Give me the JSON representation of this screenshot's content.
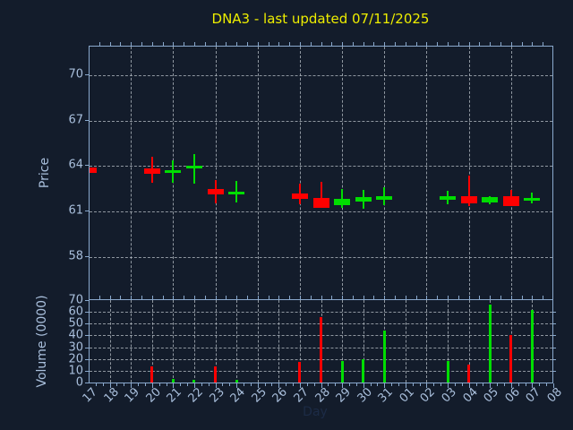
{
  "title": {
    "text": "DNA3 - last updated 07/11/2025"
  },
  "colors": {
    "background": "#131c2b",
    "title_text": "#eded00",
    "axis_frame": "#8aa9cd",
    "axis_text": "#a9bfdc",
    "grid": "#b9c0c8",
    "up": "#00dd00",
    "down": "#ff0000",
    "xlabel_text": "#1c2b46"
  },
  "price_axis": {
    "label": "Price",
    "ticks": [
      70,
      67,
      64,
      61,
      58
    ]
  },
  "volume_axis": {
    "label": "Volume (0000)",
    "ticks": [
      70,
      60,
      50,
      40,
      30,
      20,
      10,
      0
    ]
  },
  "x_axis": {
    "label": "Day",
    "tick_labels": [
      "17",
      "18",
      "19",
      "20",
      "21",
      "22",
      "23",
      "24",
      "25",
      "26",
      "27",
      "28",
      "29",
      "30",
      "31",
      "01",
      "02",
      "03",
      "04",
      "05",
      "06",
      "07",
      "08"
    ]
  },
  "chart_data": {
    "type": "candlestick_with_volume",
    "title": "DNA3 - last updated 07/11/2025",
    "xlabel": "Day",
    "ylabel_price": "Price",
    "ylabel_volume": "Volume (0000)",
    "grid": "dashed",
    "price_ylim": [
      55.08,
      71.9
    ],
    "volume_ylim": [
      0,
      70
    ],
    "x_categories": [
      "17",
      "18",
      "19",
      "20",
      "21",
      "22",
      "23",
      "24",
      "25",
      "26",
      "27",
      "28",
      "29",
      "30",
      "31",
      "01",
      "02",
      "03",
      "04",
      "05",
      "06",
      "07",
      "08"
    ],
    "candles": [
      {
        "day": "17",
        "open": 63.9,
        "high": 63.9,
        "low": 63.55,
        "close": 63.55,
        "volume": 0
      },
      {
        "day": "20",
        "open": 63.87,
        "high": 64.62,
        "low": 62.89,
        "close": 63.51,
        "volume": 13.5
      },
      {
        "day": "21",
        "open": 63.55,
        "high": 64.38,
        "low": 62.89,
        "close": 63.71,
        "volume": 3
      },
      {
        "day": "22",
        "open": 63.87,
        "high": 64.78,
        "low": 62.81,
        "close": 64.02,
        "volume": 2
      },
      {
        "day": "23",
        "open": 62.5,
        "high": 63.1,
        "low": 61.51,
        "close": 62.1,
        "volume": 13.5
      },
      {
        "day": "24",
        "open": 62.16,
        "high": 63.04,
        "low": 61.61,
        "close": 62.3,
        "volume": 2.5
      },
      {
        "day": "27",
        "open": 62.2,
        "high": 62.83,
        "low": 61.45,
        "close": 61.84,
        "volume": 17.5
      },
      {
        "day": "28",
        "open": 61.9,
        "high": 62.96,
        "low": 61.25,
        "close": 61.25,
        "volume": 55.5
      },
      {
        "day": "29",
        "open": 61.4,
        "high": 62.5,
        "low": 61.25,
        "close": 61.85,
        "volume": 18
      },
      {
        "day": "30",
        "open": 61.65,
        "high": 62.45,
        "low": 61.2,
        "close": 61.95,
        "volume": 19.5
      },
      {
        "day": "31",
        "open": 61.8,
        "high": 62.6,
        "low": 61.4,
        "close": 62.0,
        "volume": 44
      },
      {
        "day": "03",
        "open": 61.8,
        "high": 62.36,
        "low": 61.45,
        "close": 62.0,
        "volume": 18
      },
      {
        "day": "04",
        "open": 62.0,
        "high": 63.4,
        "low": 61.37,
        "close": 61.55,
        "volume": 15.5
      },
      {
        "day": "05",
        "open": 61.61,
        "high": 62.0,
        "low": 61.45,
        "close": 61.96,
        "volume": 66
      },
      {
        "day": "06",
        "open": 62.0,
        "high": 62.4,
        "low": 61.37,
        "close": 61.37,
        "volume": 40
      },
      {
        "day": "07",
        "open": 61.76,
        "high": 62.24,
        "low": 61.51,
        "close": 61.88,
        "volume": 61.5
      }
    ]
  }
}
